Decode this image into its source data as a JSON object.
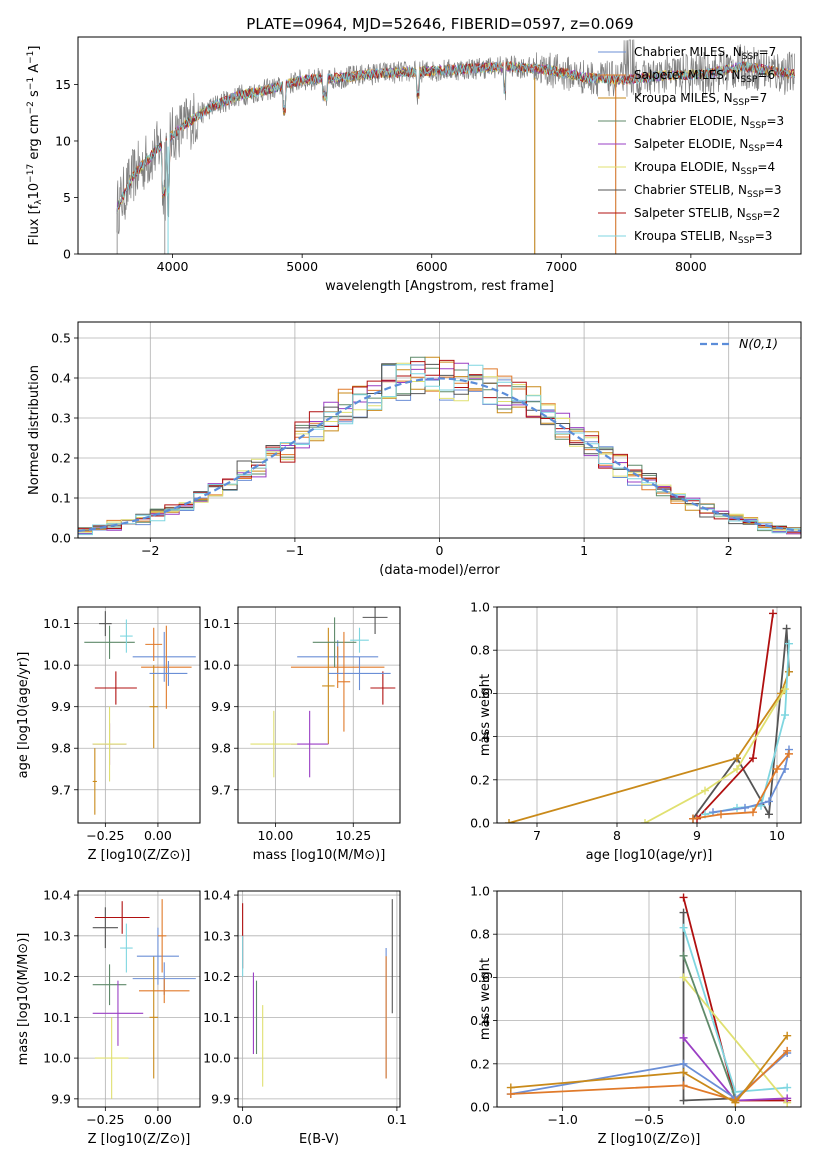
{
  "figure_title": "PLATE=0964, MJD=52646, FIBERID=0597, z=0.069",
  "models": [
    {
      "name": "Chabrier MILES",
      "n_ssp": "7",
      "color": "#6b8fd6"
    },
    {
      "name": "Salpeter MILES",
      "n_ssp": "6",
      "color": "#e07a2a"
    },
    {
      "name": "Kroupa MILES",
      "n_ssp": "7",
      "color": "#c98a1a"
    },
    {
      "name": "Chabrier ELODIE",
      "n_ssp": "3",
      "color": "#5f8a6a"
    },
    {
      "name": "Salpeter ELODIE",
      "n_ssp": "4",
      "color": "#9a3fc4"
    },
    {
      "name": "Kroupa ELODIE",
      "n_ssp": "4",
      "color": "#e0e070"
    },
    {
      "name": "Chabrier STELIB",
      "n_ssp": "3",
      "color": "#555555"
    },
    {
      "name": "Salpeter STELIB",
      "n_ssp": "2",
      "color": "#b01010"
    },
    {
      "name": "Kroupa STELIB",
      "n_ssp": "3",
      "color": "#7fd6e0"
    }
  ],
  "chart_data": [
    {
      "id": "spectrum",
      "type": "line",
      "title": "PLATE=0964, MJD=52646, FIBERID=0597, z=0.069",
      "xlabel": "wavelength [Angstrom, rest frame]",
      "ylabel": "Flux [f_λ 10^-17 erg cm^-2 s^-1 A^-1]",
      "xlim": [
        3270,
        8850
      ],
      "ylim": [
        0,
        19.2
      ],
      "xticks": [
        "4000",
        "5000",
        "6000",
        "7000",
        "8000"
      ],
      "yticks": [
        "0",
        "5",
        "10",
        "15"
      ],
      "legend": "upper right",
      "data_series": {
        "name": "data",
        "color": "#808080"
      },
      "continuum": {
        "x": [
          3570,
          3700,
          3900,
          4100,
          4300,
          4500,
          4800,
          5000,
          5300,
          5600,
          6000,
          6300,
          6600,
          6900,
          7200,
          7500,
          7800,
          8100,
          8400,
          8800
        ],
        "y": [
          4,
          7,
          9.5,
          11.5,
          13,
          14,
          14.7,
          15.4,
          15.6,
          16,
          16.2,
          16.4,
          16.6,
          16.3,
          15.6,
          15.4,
          15.8,
          15.9,
          16.6,
          15.9
        ]
      }
    },
    {
      "id": "residuals",
      "type": "step",
      "xlabel": "(data-model)/error",
      "ylabel": "Normed distribution",
      "xlim": [
        -2.5,
        2.5
      ],
      "ylim": [
        0,
        0.54
      ],
      "xticks": [
        "−2",
        "−1",
        "0",
        "1",
        "2"
      ],
      "yticks": [
        "0.0",
        "0.1",
        "0.2",
        "0.3",
        "0.4",
        "0.5"
      ],
      "grid": true,
      "legend": "upper right",
      "reference": {
        "label": "N(0,1)",
        "color": "#5b8dd9"
      },
      "bin_width": 0.1
    },
    {
      "id": "age-vs-Z",
      "type": "errorbar",
      "xlabel": "Z [log10(Z/Z⊙)]",
      "ylabel": "age [log10(age/yr)]",
      "xlim": [
        -0.38,
        0.2
      ],
      "ylim": [
        9.62,
        10.14
      ],
      "xticks": [
        "−0.25",
        "0.00"
      ],
      "yticks": [
        "9.7",
        "9.8",
        "9.9",
        "10.0",
        "10.1"
      ],
      "grid": true,
      "points": [
        {
          "x": 0.03,
          "xerr": 0.15,
          "y": 10.02,
          "yerr": 0.06
        },
        {
          "x": 0.04,
          "xerr": 0.12,
          "y": 9.995,
          "yerr": 0.1
        },
        {
          "x": -0.02,
          "xerr": 0.02,
          "y": 9.9,
          "yerr": 0.1
        },
        {
          "x": -0.23,
          "xerr": 0.12,
          "y": 10.055,
          "yerr": 0.04
        },
        {
          "x": -0.23,
          "xerr": 0.08,
          "y": 9.81,
          "yerr": 0.05
        },
        {
          "x": -0.23,
          "xerr": 0.08,
          "y": 9.81,
          "yerr": 0.09
        },
        {
          "x": -0.25,
          "xerr": 0.03,
          "y": 10.1,
          "yerr": 0.03
        },
        {
          "x": -0.2,
          "xerr": 0.1,
          "y": 9.945,
          "yerr": 0.04
        },
        {
          "x": -0.15,
          "xerr": 0.03,
          "y": 10.07,
          "yerr": 0.04
        },
        {
          "x": 0.05,
          "xerr": 0.09,
          "y": 9.98,
          "yerr": 0.03
        },
        {
          "x": -0.02,
          "xerr": 0.04,
          "y": 10.05,
          "yerr": 0.04
        },
        {
          "x": -0.3,
          "xerr": 0.01,
          "y": 9.72,
          "yerr": 0.08
        }
      ]
    },
    {
      "id": "age-vs-mass",
      "type": "errorbar",
      "xlabel": "mass [log10(M/M⊙)]",
      "ylabel": "",
      "xlim": [
        9.88,
        10.4
      ],
      "ylim": [
        9.62,
        10.14
      ],
      "xticks": [
        "10.00",
        "10.25"
      ],
      "yticks": [
        "9.7",
        "9.8",
        "9.9",
        "10.0",
        "10.1"
      ],
      "grid": true,
      "points": [
        {
          "x": 10.2,
          "xerr": 0.13,
          "y": 10.02,
          "yerr": 0.04
        },
        {
          "x": 10.2,
          "xerr": 0.15,
          "y": 9.995,
          "yerr": 0.05
        },
        {
          "x": 10.17,
          "xerr": 0.02,
          "y": 9.95,
          "yerr": 0.14
        },
        {
          "x": 10.19,
          "xerr": 0.07,
          "y": 10.055,
          "yerr": 0.06
        },
        {
          "x": 10.11,
          "xerr": 0.06,
          "y": 9.81,
          "yerr": 0.08
        },
        {
          "x": 9.995,
          "xerr": 0.075,
          "y": 9.81,
          "yerr": 0.08
        },
        {
          "x": 10.32,
          "xerr": 0.04,
          "y": 10.115,
          "yerr": 0.04
        },
        {
          "x": 10.345,
          "xerr": 0.04,
          "y": 9.945,
          "yerr": 0.04
        },
        {
          "x": 10.27,
          "xerr": 0.03,
          "y": 10.06,
          "yerr": 0.03
        },
        {
          "x": 10.27,
          "xerr": 0.1,
          "y": 9.98,
          "yerr": 0.04
        },
        {
          "x": 10.22,
          "xerr": 0.02,
          "y": 9.96,
          "yerr": 0.12
        }
      ]
    },
    {
      "id": "mass-weight-vs-age",
      "type": "line",
      "xlabel": "age [log10(age/yr)]",
      "ylabel": "mass weight",
      "xlim": [
        6.5,
        10.3
      ],
      "ylim": [
        0,
        1.0
      ],
      "xticks": [
        "7",
        "8",
        "9",
        "10"
      ],
      "yticks": [
        "0.0",
        "0.2",
        "0.4",
        "0.6",
        "0.8",
        "1.0"
      ],
      "grid": true,
      "series": [
        {
          "model": 7,
          "x": [
            8.95,
            9.5,
            9.9,
            10.12,
            10.15
          ],
          "y": [
            0.02,
            0.3,
            0.04,
            0.9,
            0.7
          ]
        },
        {
          "model": 3,
          "x": [
            6.65,
            9.5,
            10.05,
            10.15
          ],
          "y": [
            0.0,
            0.3,
            0.6,
            0.7
          ]
        },
        {
          "model": 8,
          "x": [
            9.0,
            9.7,
            9.95
          ],
          "y": [
            0.02,
            0.3,
            0.97
          ]
        },
        {
          "model": 9,
          "x": [
            9.1,
            9.5,
            9.8,
            10.1,
            10.15
          ],
          "y": [
            0.04,
            0.07,
            0.08,
            0.5,
            0.83
          ]
        },
        {
          "model": 6,
          "x": [
            8.35,
            9.1,
            9.5,
            10.1
          ],
          "y": [
            0.0,
            0.15,
            0.25,
            0.62
          ]
        },
        {
          "model": 1,
          "x": [
            9.2,
            9.6,
            9.9,
            10.1,
            10.15
          ],
          "y": [
            0.05,
            0.07,
            0.1,
            0.25,
            0.34
          ]
        },
        {
          "model": 2,
          "x": [
            8.95,
            9.3,
            9.7,
            10.0,
            10.15
          ],
          "y": [
            0.02,
            0.04,
            0.05,
            0.25,
            0.32
          ]
        }
      ]
    },
    {
      "id": "mass-vs-Z",
      "type": "errorbar",
      "xlabel": "Z [log10(Z/Z⊙)]",
      "ylabel": "mass [log10(M/M⊙)]",
      "xlim": [
        -0.38,
        0.2
      ],
      "ylim": [
        9.88,
        10.41
      ],
      "xticks": [
        "−0.25",
        "0.00"
      ],
      "yticks": [
        "9.9",
        "10.0",
        "10.1",
        "10.2",
        "10.3",
        "10.4"
      ],
      "grid": true,
      "points": [
        {
          "x": 0.03,
          "xerr": 0.15,
          "y": 10.195,
          "yerr": 0.04
        },
        {
          "x": 0.03,
          "xerr": 0.12,
          "y": 10.165,
          "yerr": 0.03
        },
        {
          "x": -0.02,
          "xerr": 0.02,
          "y": 10.1,
          "yerr": 0.15
        },
        {
          "x": -0.23,
          "xerr": 0.08,
          "y": 10.18,
          "yerr": 0.05
        },
        {
          "x": -0.19,
          "xerr": 0.12,
          "y": 10.11,
          "yerr": 0.08
        },
        {
          "x": -0.22,
          "xerr": 0.08,
          "y": 10.0,
          "yerr": 0.1
        },
        {
          "x": -0.25,
          "xerr": 0.06,
          "y": 10.32,
          "yerr": 0.05
        },
        {
          "x": -0.17,
          "xerr": 0.13,
          "y": 10.345,
          "yerr": 0.04
        },
        {
          "x": -0.15,
          "xerr": 0.03,
          "y": 10.27,
          "yerr": 0.06
        },
        {
          "x": 0.0,
          "xerr": 0.1,
          "y": 10.25,
          "yerr": 0.07
        },
        {
          "x": 0.02,
          "xerr": 0.02,
          "y": 10.3,
          "yerr": 0.09
        }
      ]
    },
    {
      "id": "mass-vs-ebv",
      "type": "errorbar",
      "xlabel": "E(B-V)",
      "ylabel": "",
      "xlim": [
        -0.003,
        0.102
      ],
      "ylim": [
        9.88,
        10.41
      ],
      "xticks": [
        "0.0",
        "0.1"
      ],
      "yticks": [
        "9.9",
        "10.0",
        "10.1",
        "10.2",
        "10.3",
        "10.4"
      ],
      "grid": true,
      "points": [
        {
          "x": 0.0,
          "y": 10.3,
          "yerr": 0.08,
          "model": 8
        },
        {
          "x": 0.0,
          "y": 10.25,
          "yerr": 0.05,
          "model": 9
        },
        {
          "x": 0.007,
          "y": 10.11,
          "yerr": 0.1,
          "model": 5
        },
        {
          "x": 0.009,
          "y": 10.1,
          "yerr": 0.09,
          "model": 4
        },
        {
          "x": 0.013,
          "y": 10.03,
          "yerr": 0.1,
          "model": 6
        },
        {
          "x": 0.093,
          "y": 10.11,
          "yerr": 0.16,
          "model": 1
        },
        {
          "x": 0.093,
          "y": 10.1,
          "yerr": 0.15,
          "model": 2
        },
        {
          "x": 0.097,
          "y": 10.25,
          "yerr": 0.14,
          "model": 7
        }
      ]
    },
    {
      "id": "mass-weight-vs-Z",
      "type": "line",
      "xlabel": "Z [log10(Z/Z⊙)]",
      "ylabel": "mass weight",
      "xlim": [
        -1.38,
        0.38
      ],
      "ylim": [
        0,
        1.0
      ],
      "xticks": [
        "−1.0",
        "−0.5",
        "0.0"
      ],
      "yticks": [
        "0.0",
        "0.2",
        "0.4",
        "0.6",
        "0.8",
        "1.0"
      ],
      "grid": true,
      "series": [
        {
          "model": 8,
          "x": [
            -0.3,
            0.0,
            0.3
          ],
          "y": [
            0.97,
            0.03,
            0.03
          ]
        },
        {
          "model": 7,
          "x": [
            -0.3,
            -0.3,
            0.0
          ],
          "y": [
            0.9,
            0.03,
            0.04
          ]
        },
        {
          "model": 9,
          "x": [
            -0.3,
            0.0,
            0.3
          ],
          "y": [
            0.83,
            0.07,
            0.09
          ]
        },
        {
          "model": 6,
          "x": [
            -0.3,
            0.3
          ],
          "y": [
            0.6,
            0.02
          ]
        },
        {
          "model": 4,
          "x": [
            -0.3,
            0.0
          ],
          "y": [
            0.7,
            0.04
          ]
        },
        {
          "model": 5,
          "x": [
            -0.3,
            0.0,
            0.3
          ],
          "y": [
            0.32,
            0.03,
            0.04
          ]
        },
        {
          "model": 1,
          "x": [
            -1.3,
            -0.3,
            0.0,
            0.3
          ],
          "y": [
            0.06,
            0.2,
            0.04,
            0.25
          ]
        },
        {
          "model": 2,
          "x": [
            -1.3,
            -0.3,
            0.0,
            0.3
          ],
          "y": [
            0.06,
            0.1,
            0.03,
            0.26
          ]
        },
        {
          "model": 3,
          "x": [
            -1.3,
            -0.3,
            0.0,
            0.3
          ],
          "y": [
            0.09,
            0.16,
            0.02,
            0.33
          ]
        }
      ]
    }
  ]
}
